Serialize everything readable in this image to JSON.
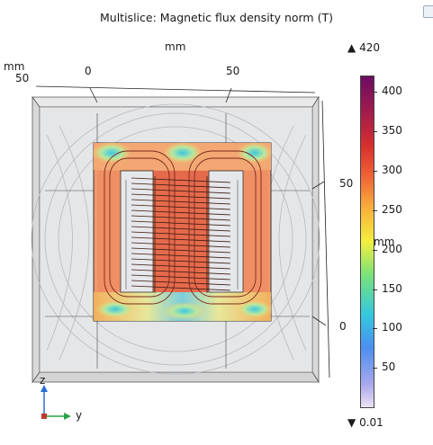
{
  "plot": {
    "title": "Multislice: Magnetic flux density norm (T)",
    "axis_unit_top": "mm",
    "axis_unit_left": "mm",
    "axis_unit_right": "mm",
    "top_ticks": [
      "0",
      "50"
    ],
    "left_tick": "50",
    "right_ticks": [
      "50",
      "0"
    ],
    "triad": {
      "z": "z",
      "y": "y"
    }
  },
  "legend": {
    "max_label": "420",
    "min_label": "0.01",
    "ticks": [
      "400",
      "350",
      "300",
      "250",
      "200",
      "150",
      "100",
      "50"
    ]
  },
  "colors": {
    "low": "#ece3f5",
    "mid": "#f3ef3f",
    "high": "#6c0c62",
    "core_fill": "#ef8a62",
    "winding": "#5a1f14"
  }
}
